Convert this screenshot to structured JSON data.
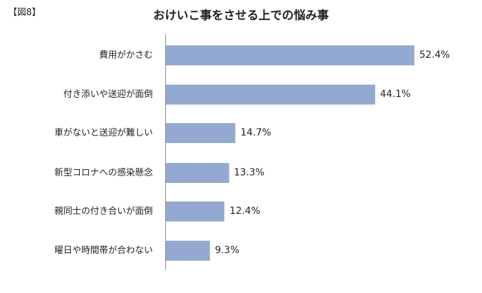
{
  "figure_label": "【図8】",
  "chart_data": {
    "type": "bar",
    "orientation": "horizontal",
    "title": "おけいこ事をさせる上での悩み事",
    "categories": [
      "費用がかさむ",
      "付き添いや送迎が面倒",
      "車がないと送迎が難しい",
      "新型コロナへの感染懸念",
      "親同士の付き合いが面倒",
      "曜日や時間帯が合わない"
    ],
    "values": [
      52.4,
      44.1,
      14.7,
      13.3,
      12.4,
      9.3
    ],
    "value_labels": [
      "52.4%",
      "44.1%",
      "14.7%",
      "13.3%",
      "12.4%",
      "9.3%"
    ],
    "unit": "%",
    "xlabel": "",
    "ylabel": "",
    "grid": false,
    "legend": null,
    "bar_color": "#94a9d2"
  }
}
